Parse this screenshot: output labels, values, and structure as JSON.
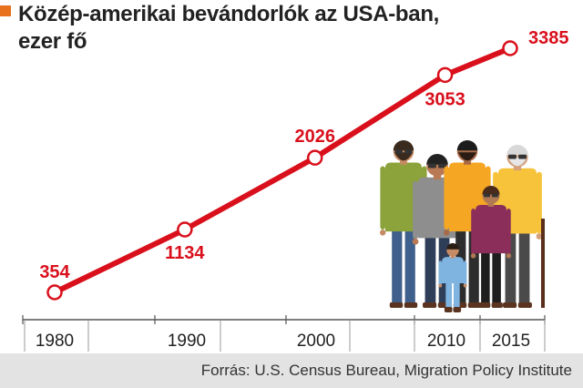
{
  "title_lines": [
    "Közép-amerikai bevándorlók az USA-ban,",
    "ezer fő"
  ],
  "source": "Forrás: U.S. Census Bureau, Migration Policy Institute",
  "colors": {
    "line": "#d9101c",
    "accent": "#e8711d",
    "footer_bg": "#e3e3e3"
  },
  "chart_data": {
    "type": "line",
    "title": "Közép-amerikai bevándorlók az USA-ban, ezer fő",
    "xlabel": "",
    "ylabel": "",
    "x": [
      1980,
      1990,
      2000,
      2010,
      2015
    ],
    "tick_labels": [
      "1980",
      "1990",
      "2000",
      "2010",
      "2015"
    ],
    "series": [
      {
        "values": [
          354,
          1134,
          2026,
          3053,
          3385
        ]
      }
    ],
    "data_labels": [
      "354",
      "1134",
      "2026",
      "3053",
      "3385"
    ],
    "xlim": [
      1975,
      2017
    ],
    "ylim": [
      0,
      3500
    ],
    "grid": false,
    "legend": "none",
    "illustration": "group-of-people"
  }
}
